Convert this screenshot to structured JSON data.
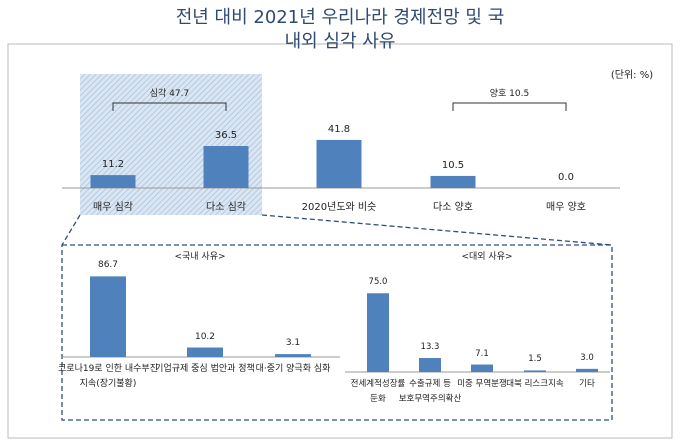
{
  "chart_data": [
    {
      "type": "bar",
      "title": "전년 대비 2021년 우리나라 경제전망 및 국내외 심각 사유",
      "unit": "(단위: %)",
      "categories": [
        "매우 심각",
        "다소 심각",
        "2020년도와 비슷",
        "다소 양호",
        "매우 양호"
      ],
      "values": [
        11.2,
        36.5,
        41.8,
        10.5,
        0
      ],
      "value_labels": [
        "11.2",
        "36.5",
        "41.8",
        "10.5",
        "0.0"
      ],
      "color": "#4f81bd",
      "annotations": [
        "심각 47.7",
        "양호 10.5"
      ]
    },
    {
      "type": "bar",
      "title": "<국내 사유>",
      "categories": [
        "코로나19로 인한 내수부진\n지속(장기불황)",
        "기업규제 중심 법안과 정책",
        "대·중기 양극화 심화"
      ],
      "values": [
        86.7,
        10.2,
        3.1
      ],
      "value_labels": [
        "86.7",
        "10.2",
        "3.1"
      ],
      "color": "#4f81bd"
    },
    {
      "type": "bar",
      "title": "<대외 사유>",
      "categories": [
        "전세계적성장률\n둔화",
        "수출규제 등\n보호무역주의확산",
        "미중 무역분쟁",
        "대북 리스크지속",
        "기타"
      ],
      "values": [
        75.0,
        13.3,
        7.1,
        1.5,
        3.0
      ],
      "value_labels": [
        "75.0",
        "13.3",
        "7.1",
        "1.5",
        "3.0"
      ],
      "color": "#4f81bd"
    }
  ]
}
